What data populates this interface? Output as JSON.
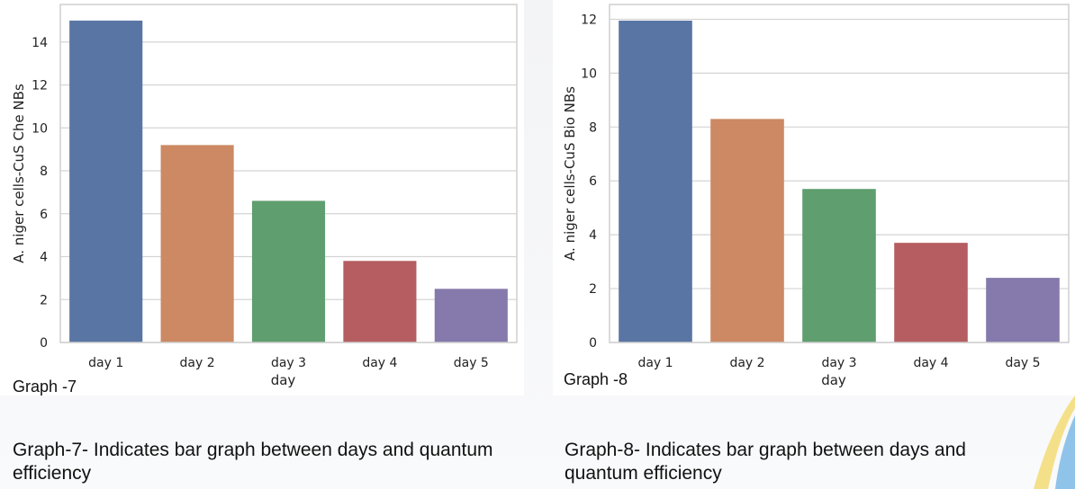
{
  "charts": [
    {
      "graph_label": "Graph -7",
      "caption": "Graph-7- Indicates bar graph between days and quantum efficiency"
    },
    {
      "graph_label": "Graph -8",
      "caption": "Graph-8- Indicates bar graph between days and quantum efficiency"
    }
  ],
  "chart_data": [
    {
      "type": "bar",
      "categories": [
        "day 1",
        "day 2",
        "day 3",
        "day 4",
        "day 5"
      ],
      "values": [
        15.0,
        9.2,
        6.6,
        3.8,
        2.5
      ],
      "colors": [
        "#5975a4",
        "#cc8963",
        "#5f9e6e",
        "#b55d60",
        "#857aab"
      ],
      "xlabel": "day",
      "ylabel": "A. niger cells-CuS Che NBs",
      "ylim": [
        0,
        15.75
      ],
      "yticks": [
        0,
        2,
        4,
        6,
        8,
        10,
        12,
        14
      ],
      "grid": true
    },
    {
      "type": "bar",
      "categories": [
        "day 1",
        "day 2",
        "day 3",
        "day 4",
        "day 5"
      ],
      "values": [
        11.95,
        8.3,
        5.7,
        3.7,
        2.4
      ],
      "colors": [
        "#5975a4",
        "#cc8963",
        "#5f9e6e",
        "#b55d60",
        "#857aab"
      ],
      "xlabel": "day",
      "ylabel": "A. niger cells-CuS Bio NBs",
      "ylim": [
        0,
        12.55
      ],
      "yticks": [
        0,
        2,
        4,
        6,
        8,
        10,
        12
      ],
      "grid": true
    }
  ]
}
